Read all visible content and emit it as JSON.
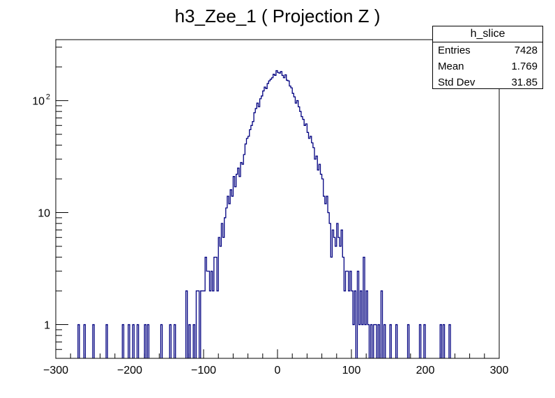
{
  "chart_data": {
    "type": "histogram",
    "title": "h3_Zee_1 ( Projection Z )",
    "xlabel": "",
    "ylabel": "",
    "x_scale": "linear",
    "y_scale": "log",
    "xlim": [
      -300,
      300
    ],
    "ylim": [
      0.5,
      350
    ],
    "bin_width": 2,
    "line_color": "#000080",
    "x_ticks": [
      -300,
      -200,
      -100,
      0,
      100,
      200,
      300
    ],
    "x_tick_labels": [
      "−300",
      "−200",
      "−100",
      "0",
      "100",
      "200",
      "300"
    ],
    "y_tick_labels": [
      {
        "value": 1,
        "base": "1",
        "exp": ""
      },
      {
        "value": 10,
        "base": "10",
        "exp": ""
      },
      {
        "value": 100,
        "base": "10",
        "exp": "2"
      }
    ],
    "bins": [
      {
        "x": -270,
        "y": 1
      },
      {
        "x": -262,
        "y": 1
      },
      {
        "x": -250,
        "y": 1
      },
      {
        "x": -232,
        "y": 1
      },
      {
        "x": -210,
        "y": 1
      },
      {
        "x": -202,
        "y": 1
      },
      {
        "x": -196,
        "y": 1
      },
      {
        "x": -190,
        "y": 1
      },
      {
        "x": -180,
        "y": 1
      },
      {
        "x": -176,
        "y": 1
      },
      {
        "x": -158,
        "y": 1
      },
      {
        "x": -146,
        "y": 1
      },
      {
        "x": -140,
        "y": 1
      },
      {
        "x": -124,
        "y": 2
      },
      {
        "x": -120,
        "y": 1
      },
      {
        "x": -114,
        "y": 1
      },
      {
        "x": -110,
        "y": 2
      },
      {
        "x": -108,
        "y": 2
      },
      {
        "x": -104,
        "y": 2
      },
      {
        "x": -102,
        "y": 2
      },
      {
        "x": -100,
        "y": 2
      },
      {
        "x": -98,
        "y": 4
      },
      {
        "x": -96,
        "y": 3
      },
      {
        "x": -94,
        "y": 3
      },
      {
        "x": -92,
        "y": 2
      },
      {
        "x": -90,
        "y": 3
      },
      {
        "x": -88,
        "y": 2
      },
      {
        "x": -86,
        "y": 4
      },
      {
        "x": -84,
        "y": 4
      },
      {
        "x": -82,
        "y": 2
      },
      {
        "x": -80,
        "y": 6
      },
      {
        "x": -78,
        "y": 5
      },
      {
        "x": -76,
        "y": 8
      },
      {
        "x": -74,
        "y": 6
      },
      {
        "x": -72,
        "y": 9
      },
      {
        "x": -70,
        "y": 11
      },
      {
        "x": -68,
        "y": 14
      },
      {
        "x": -66,
        "y": 12
      },
      {
        "x": -64,
        "y": 16
      },
      {
        "x": -62,
        "y": 14
      },
      {
        "x": -60,
        "y": 21
      },
      {
        "x": -58,
        "y": 17
      },
      {
        "x": -56,
        "y": 22
      },
      {
        "x": -54,
        "y": 25
      },
      {
        "x": -52,
        "y": 21
      },
      {
        "x": -50,
        "y": 28
      },
      {
        "x": -48,
        "y": 27
      },
      {
        "x": -46,
        "y": 33
      },
      {
        "x": -44,
        "y": 41
      },
      {
        "x": -42,
        "y": 46
      },
      {
        "x": -40,
        "y": 48
      },
      {
        "x": -38,
        "y": 55
      },
      {
        "x": -36,
        "y": 60
      },
      {
        "x": -34,
        "y": 65
      },
      {
        "x": -32,
        "y": 78
      },
      {
        "x": -30,
        "y": 85
      },
      {
        "x": -28,
        "y": 95
      },
      {
        "x": -26,
        "y": 88
      },
      {
        "x": -24,
        "y": 104
      },
      {
        "x": -22,
        "y": 110
      },
      {
        "x": -20,
        "y": 122
      },
      {
        "x": -18,
        "y": 132
      },
      {
        "x": -16,
        "y": 128
      },
      {
        "x": -14,
        "y": 142
      },
      {
        "x": -12,
        "y": 150
      },
      {
        "x": -10,
        "y": 155
      },
      {
        "x": -8,
        "y": 160
      },
      {
        "x": -6,
        "y": 172
      },
      {
        "x": -4,
        "y": 168
      },
      {
        "x": -2,
        "y": 185
      },
      {
        "x": 0,
        "y": 178
      },
      {
        "x": 2,
        "y": 176
      },
      {
        "x": 4,
        "y": 182
      },
      {
        "x": 6,
        "y": 168
      },
      {
        "x": 8,
        "y": 160
      },
      {
        "x": 10,
        "y": 170
      },
      {
        "x": 12,
        "y": 152
      },
      {
        "x": 14,
        "y": 150
      },
      {
        "x": 16,
        "y": 135
      },
      {
        "x": 18,
        "y": 130
      },
      {
        "x": 20,
        "y": 116
      },
      {
        "x": 22,
        "y": 108
      },
      {
        "x": 24,
        "y": 95
      },
      {
        "x": 26,
        "y": 100
      },
      {
        "x": 28,
        "y": 88
      },
      {
        "x": 30,
        "y": 80
      },
      {
        "x": 32,
        "y": 72
      },
      {
        "x": 34,
        "y": 68
      },
      {
        "x": 36,
        "y": 60
      },
      {
        "x": 38,
        "y": 62
      },
      {
        "x": 40,
        "y": 52
      },
      {
        "x": 42,
        "y": 46
      },
      {
        "x": 44,
        "y": 48
      },
      {
        "x": 46,
        "y": 42
      },
      {
        "x": 48,
        "y": 38
      },
      {
        "x": 50,
        "y": 30
      },
      {
        "x": 52,
        "y": 32
      },
      {
        "x": 54,
        "y": 24
      },
      {
        "x": 56,
        "y": 27
      },
      {
        "x": 58,
        "y": 22
      },
      {
        "x": 60,
        "y": 20
      },
      {
        "x": 62,
        "y": 14
      },
      {
        "x": 64,
        "y": 12
      },
      {
        "x": 66,
        "y": 14
      },
      {
        "x": 68,
        "y": 10
      },
      {
        "x": 70,
        "y": 8
      },
      {
        "x": 72,
        "y": 4
      },
      {
        "x": 74,
        "y": 7
      },
      {
        "x": 76,
        "y": 6
      },
      {
        "x": 78,
        "y": 5
      },
      {
        "x": 80,
        "y": 8
      },
      {
        "x": 82,
        "y": 6
      },
      {
        "x": 84,
        "y": 5
      },
      {
        "x": 86,
        "y": 7
      },
      {
        "x": 88,
        "y": 4
      },
      {
        "x": 90,
        "y": 2
      },
      {
        "x": 92,
        "y": 3
      },
      {
        "x": 94,
        "y": 3
      },
      {
        "x": 96,
        "y": 2
      },
      {
        "x": 98,
        "y": 3
      },
      {
        "x": 100,
        "y": 2
      },
      {
        "x": 102,
        "y": 1
      },
      {
        "x": 104,
        "y": 2
      },
      {
        "x": 108,
        "y": 3
      },
      {
        "x": 110,
        "y": 1
      },
      {
        "x": 112,
        "y": 2
      },
      {
        "x": 114,
        "y": 1
      },
      {
        "x": 116,
        "y": 4
      },
      {
        "x": 118,
        "y": 1
      },
      {
        "x": 120,
        "y": 2
      },
      {
        "x": 122,
        "y": 1
      },
      {
        "x": 126,
        "y": 1
      },
      {
        "x": 130,
        "y": 1
      },
      {
        "x": 132,
        "y": 1
      },
      {
        "x": 136,
        "y": 1
      },
      {
        "x": 140,
        "y": 2
      },
      {
        "x": 144,
        "y": 1
      },
      {
        "x": 152,
        "y": 1
      },
      {
        "x": 160,
        "y": 1
      },
      {
        "x": 176,
        "y": 1
      },
      {
        "x": 192,
        "y": 1
      },
      {
        "x": 198,
        "y": 1
      },
      {
        "x": 220,
        "y": 1
      },
      {
        "x": 224,
        "y": 1
      },
      {
        "x": 232,
        "y": 1
      }
    ]
  },
  "stats": {
    "title": "h_slice",
    "rows": [
      {
        "label": "Entries",
        "value": "7428"
      },
      {
        "label": "Mean",
        "value": "1.769"
      },
      {
        "label": "Std Dev",
        "value": "31.85"
      }
    ]
  }
}
